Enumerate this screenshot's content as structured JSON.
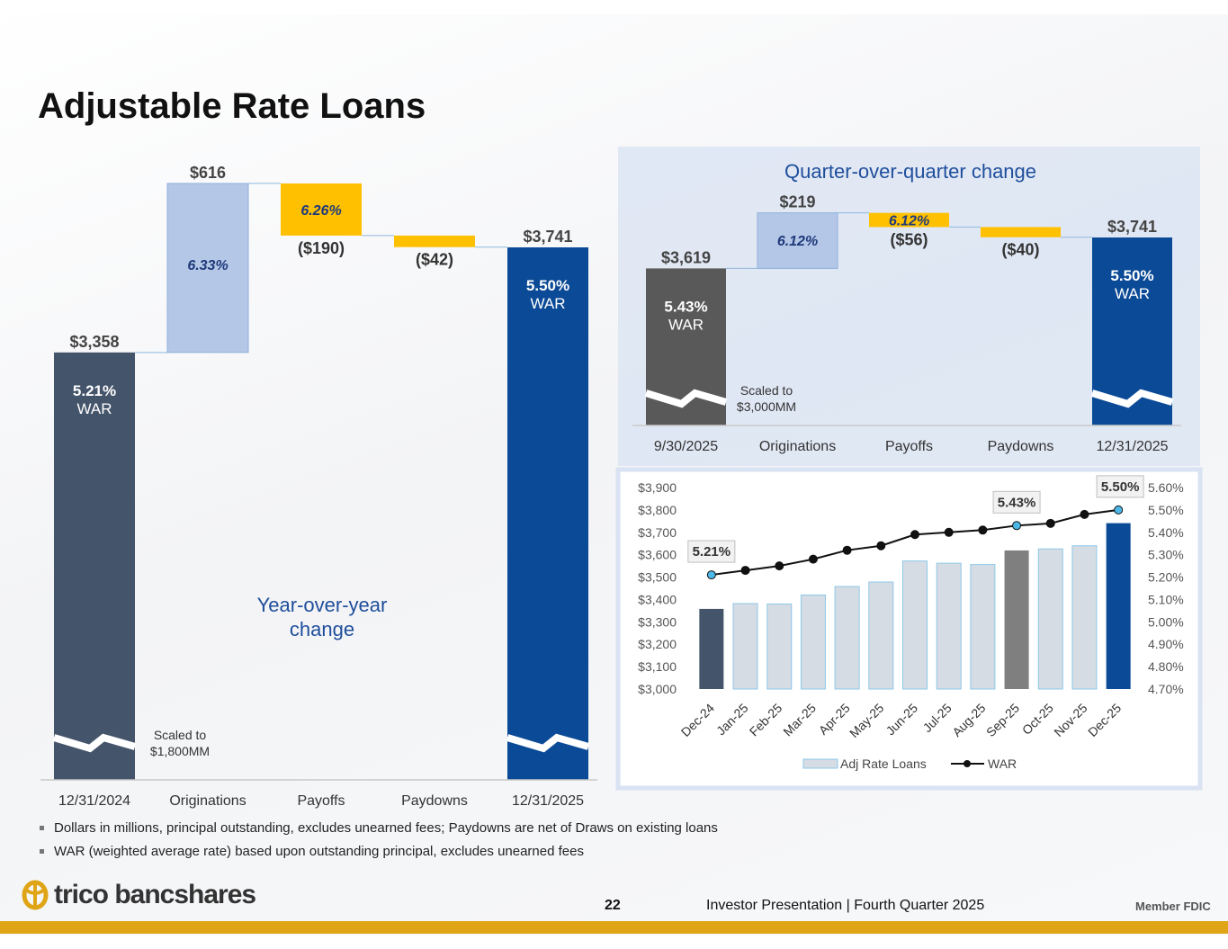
{
  "title": "Adjustable Rate Loans",
  "colors": {
    "navy": "#0b4a96",
    "slate": "#44546a",
    "lightblue": "#b4c7e7",
    "gold": "#ffc000",
    "darkgray": "#595959",
    "barlight": "#d6dce4",
    "panel": "#dae3f3",
    "accent": "#1f4e9c"
  },
  "chart_data": [
    {
      "type": "waterfall",
      "title": "Year-over-year change",
      "categories": [
        "12/31/2024",
        "Originations",
        "Payoffs",
        "Paydowns",
        "12/31/2025"
      ],
      "values": [
        3358,
        616,
        -190,
        -42,
        3741
      ],
      "value_labels": [
        "$3,358",
        "$616",
        "($190)",
        "($42)",
        "$3,741"
      ],
      "rate_labels": [
        "5.21%",
        "6.33%",
        "6.26%",
        "",
        "5.50%"
      ],
      "total_suffix": "WAR",
      "scale_note": [
        "Scaled to",
        "$1,800MM"
      ],
      "ylim": [
        1800,
        3741
      ]
    },
    {
      "type": "waterfall",
      "title": "Quarter-over-quarter change",
      "categories": [
        "9/30/2025",
        "Originations",
        "Payoffs",
        "Paydowns",
        "12/31/2025"
      ],
      "values": [
        3619,
        219,
        -56,
        -40,
        3741
      ],
      "value_labels": [
        "$3,619",
        "$219",
        "($56)",
        "($40)",
        "$3,741"
      ],
      "rate_labels": [
        "5.43%",
        "6.12%",
        "6.12%",
        "",
        "5.50%"
      ],
      "total_suffix": "WAR",
      "scale_note": [
        "Scaled to",
        "$3,000MM"
      ],
      "ylim": [
        3000,
        3741
      ]
    },
    {
      "type": "bar+line",
      "categories": [
        "Dec-24",
        "Jan-25",
        "Feb-25",
        "Mar-25",
        "Apr-25",
        "May-25",
        "Jun-25",
        "Jul-25",
        "Aug-25",
        "Sep-25",
        "Oct-25",
        "Nov-25",
        "Dec-25"
      ],
      "series": [
        {
          "name": "Adj Rate Loans",
          "axis": "left",
          "values": [
            3358,
            3382,
            3380,
            3420,
            3458,
            3478,
            3572,
            3562,
            3556,
            3619,
            3626,
            3640,
            3741
          ]
        },
        {
          "name": "WAR",
          "axis": "right",
          "values": [
            5.21,
            5.23,
            5.25,
            5.28,
            5.32,
            5.34,
            5.39,
            5.4,
            5.41,
            5.43,
            5.44,
            5.48,
            5.5
          ]
        }
      ],
      "left_ticks": [
        "$3,900",
        "$3,800",
        "$3,700",
        "$3,600",
        "$3,500",
        "$3,400",
        "$3,300",
        "$3,200",
        "$3,100",
        "$3,000"
      ],
      "right_ticks": [
        "5.60%",
        "5.50%",
        "5.40%",
        "5.30%",
        "5.20%",
        "5.10%",
        "5.00%",
        "4.90%",
        "4.80%",
        "4.70%"
      ],
      "ylim_left": [
        3000,
        3900
      ],
      "ylim_right": [
        4.7,
        5.6
      ],
      "callouts": [
        {
          "index": 0,
          "label": "5.21%"
        },
        {
          "index": 9,
          "label": "5.43%"
        },
        {
          "index": 12,
          "label": "5.50%"
        }
      ],
      "legend": [
        "Adj Rate Loans",
        "WAR"
      ]
    }
  ],
  "notes": [
    "Dollars in millions, principal outstanding, excludes unearned fees; Paydowns are net of Draws on existing loans",
    "WAR (weighted average rate) based upon outstanding principal, excludes unearned fees"
  ],
  "footer": {
    "logo_text": "trico bancshares",
    "page_number": "22",
    "deck_title": "Investor Presentation  |  Fourth Quarter 2025",
    "member": "Member FDIC"
  }
}
